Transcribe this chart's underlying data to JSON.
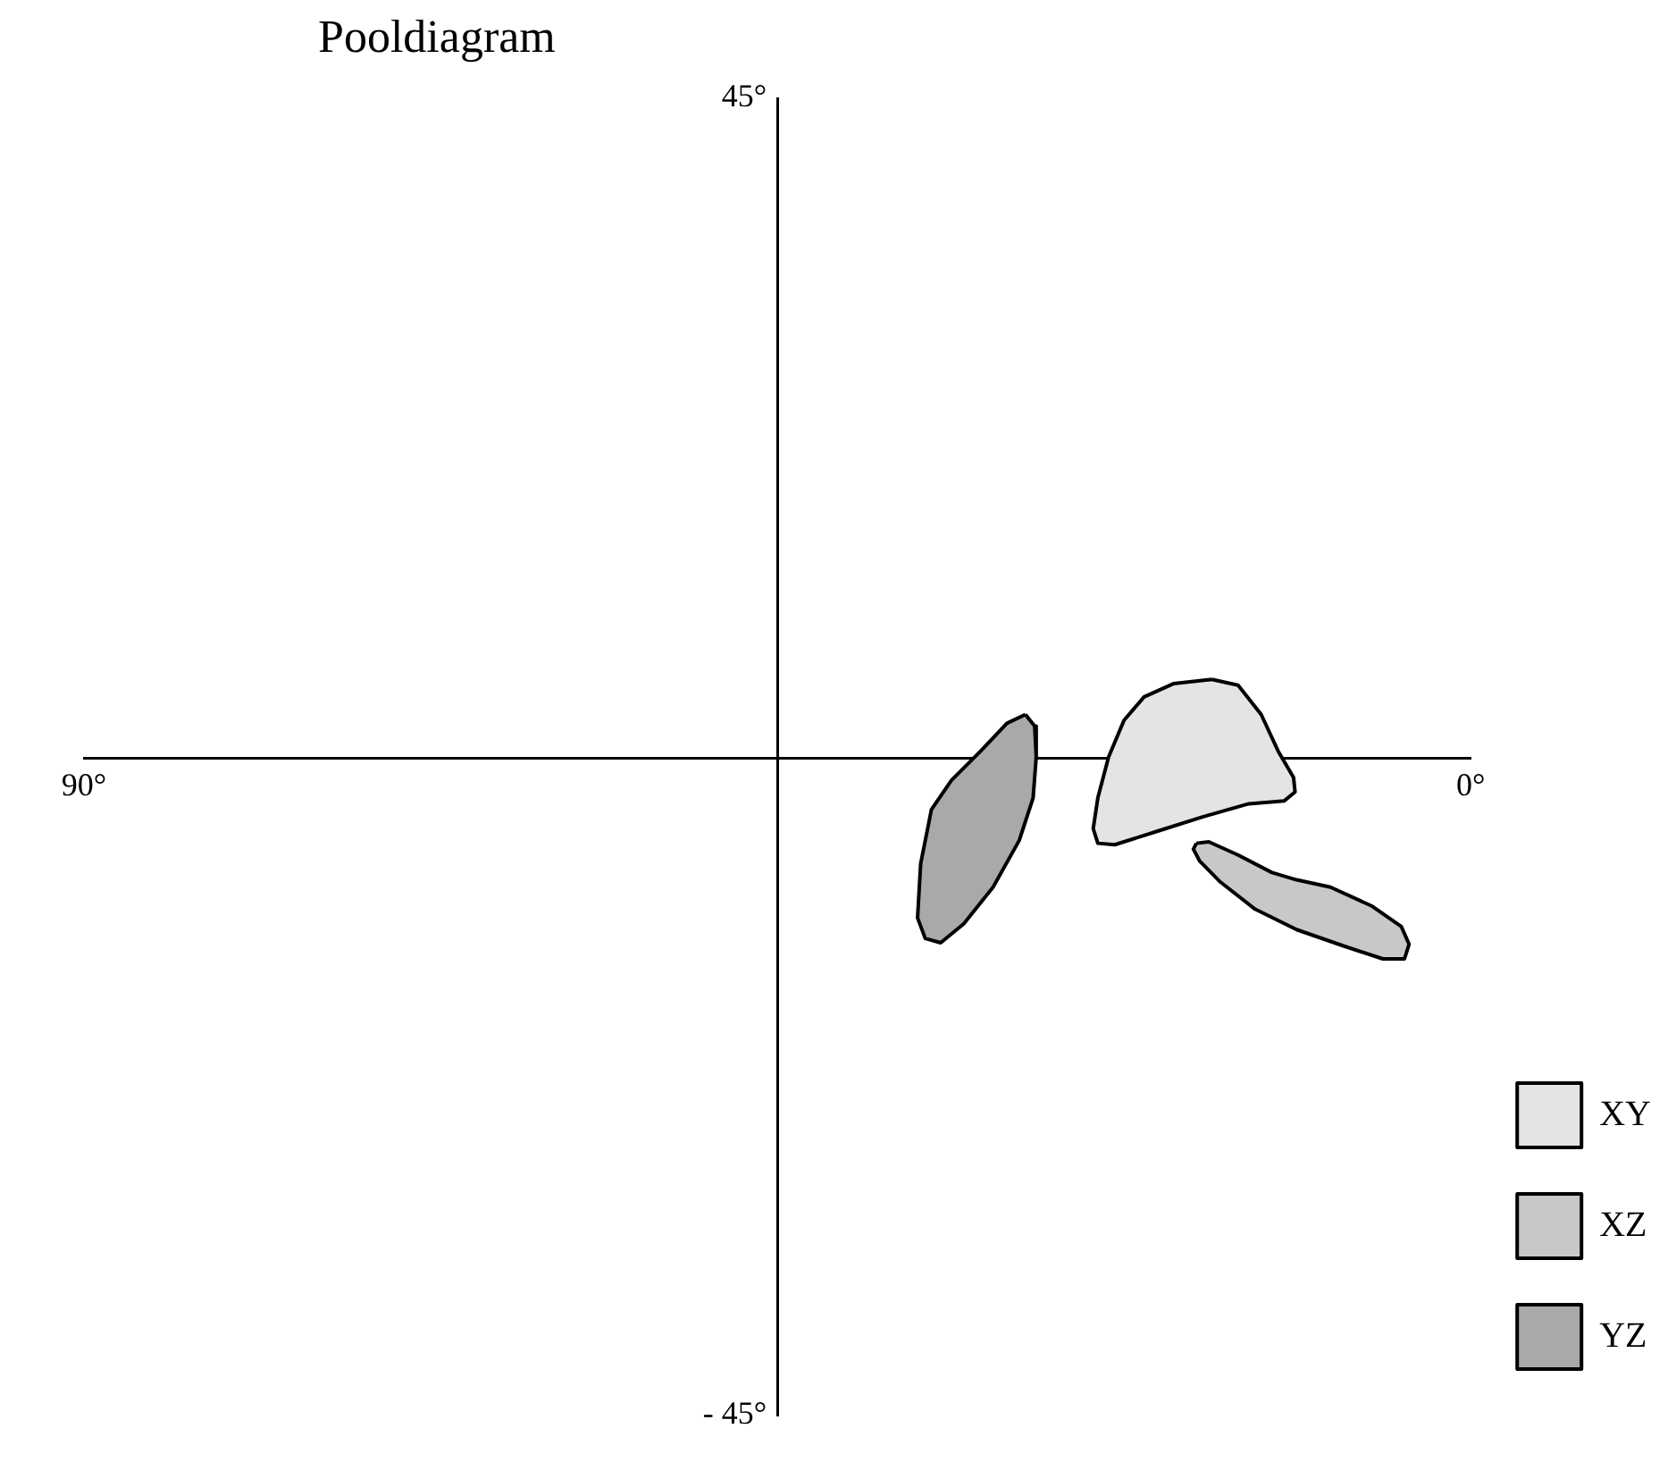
{
  "chart_data": {
    "type": "area",
    "title": "Pooldiagram",
    "xlim": [
      90,
      0
    ],
    "xticks": [
      {
        "value": 90,
        "label": "90°"
      },
      {
        "value": 0,
        "label": "0°"
      }
    ],
    "ylim": [
      -45,
      45
    ],
    "yticks": [
      {
        "value": 45,
        "label": "45°"
      },
      {
        "value": -45,
        "label": "- 45°"
      }
    ],
    "grid": false,
    "legend": "bottom right",
    "series": [
      {
        "name": "XY",
        "color": "#e4e4e4",
        "x": [
          16.8,
          15.1,
          13.6,
          12.5,
          11.5,
          11.4,
          12.1,
          14.4,
          17.4,
          20.4,
          23.1,
          24.2,
          24.5,
          24.2,
          23.5,
          22.5,
          21.2,
          19.3,
          16.8
        ],
        "values": [
          5.3,
          4.9,
          2.9,
          0.4,
          -1.4,
          -2.4,
          -3.0,
          -3.2,
          -4.1,
          -5.1,
          -6.0,
          -5.9,
          -4.9,
          -2.8,
          0.0,
          2.5,
          4.1,
          5.0,
          5.3
        ]
      },
      {
        "name": "XZ",
        "color": "#c8c8c8",
        "x": [
          17.8,
          17.0,
          15.1,
          12.9,
          11.3,
          9.1,
          6.4,
          4.5,
          4.0,
          4.3,
          5.7,
          8.3,
          11.3,
          14.0,
          16.3,
          17.6,
          18.0,
          17.8
        ],
        "values": [
          -5.9,
          -5.8,
          -6.7,
          -7.9,
          -8.4,
          -8.9,
          -10.2,
          -11.6,
          -12.8,
          -13.8,
          -13.8,
          -12.9,
          -11.8,
          -10.4,
          -8.5,
          -7.1,
          -6.3,
          -5.9
        ]
      },
      {
        "name": "YZ",
        "color": "#a9a9a9",
        "x": [
          28.9,
          28.3,
          28.2,
          28.4,
          29.3,
          31.0,
          32.9,
          34.4,
          35.4,
          35.9,
          35.7,
          35.0,
          33.7,
          31.8,
          30.1,
          28.9
        ],
        "values": [
          2.9,
          2.1,
          0.0,
          -2.8,
          -5.7,
          -8.9,
          -11.4,
          -12.7,
          -12.4,
          -11.0,
          -7.3,
          -3.6,
          -1.6,
          0.4,
          2.3,
          2.9
        ]
      }
    ]
  }
}
